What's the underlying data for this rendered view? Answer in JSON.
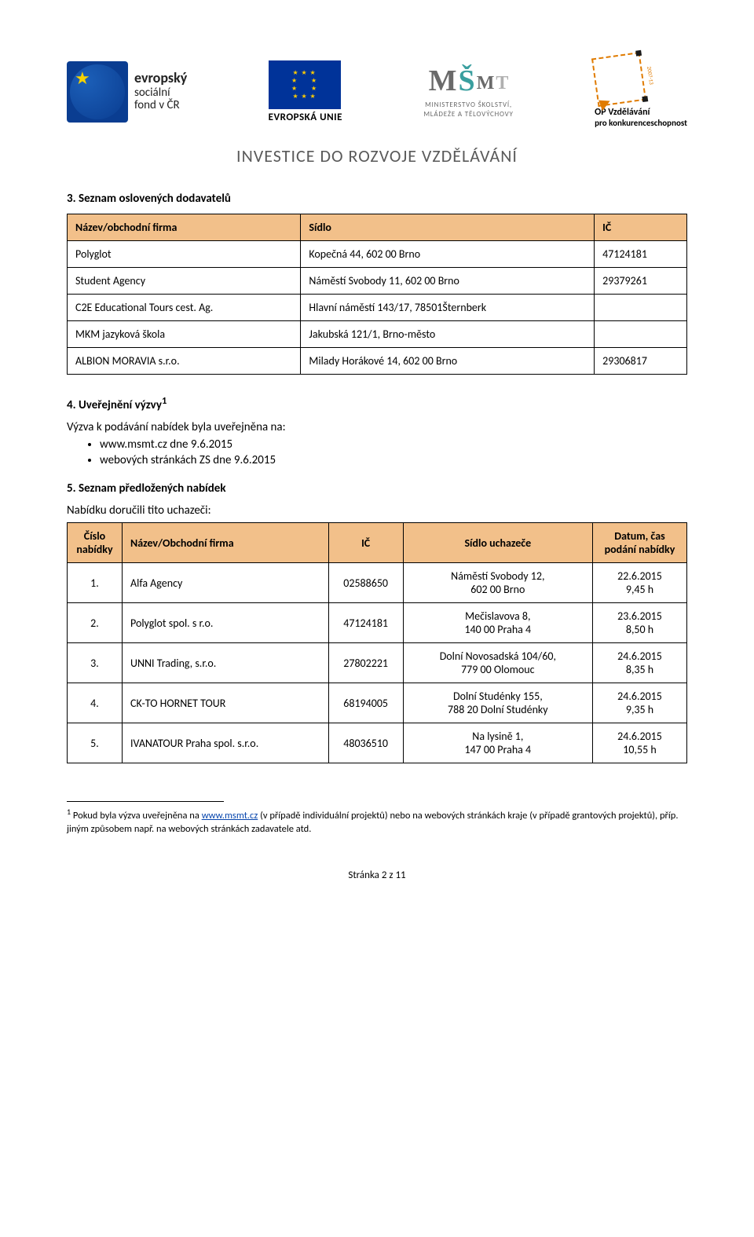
{
  "header": {
    "esf_l1": "evropský",
    "esf_l2": "sociální",
    "esf_l3": "fond v ČR",
    "eu_label": "EVROPSKÁ UNIE",
    "msmt_l1": "MINISTERSTVO ŠKOLSTVÍ,",
    "msmt_l2": "MLÁDEŽE A TĚLOVÝCHOVY",
    "opvk_l1": "OP Vzdělávání",
    "opvk_l2": "pro konkurenceschopnost",
    "opvk_year": "2007-13",
    "tagline": "INVESTICE DO ROZVOJE VZDĚLÁVÁNÍ"
  },
  "section3": {
    "heading": "3.      Seznam oslovených dodavatelů",
    "columns": [
      "Název/obchodní firma",
      "Sídlo",
      "IČ"
    ],
    "rows": [
      [
        "Polyglot",
        "Kopečná 44, 602 00 Brno",
        "47124181"
      ],
      [
        "Student Agency",
        "Náměstí Svobody 11, 602 00 Brno",
        "29379261"
      ],
      [
        "C2E Educational Tours cest. Ag.",
        "Hlavní náměstí 143/17, 78501Šternberk",
        ""
      ],
      [
        "MKM jazyková škola",
        "Jakubská 121/1, Brno-město",
        ""
      ],
      [
        "ALBION MORAVIA s.r.o.",
        "Milady Horákové 14, 602 00 Brno",
        "29306817"
      ]
    ]
  },
  "section4": {
    "heading": "4.      Uveřejnění výzvy",
    "super": "1",
    "line1": "Výzva k podávání nabídek byla uveřejněna na:",
    "bullets": [
      "www.msmt.cz dne 9.6.2015",
      "webových stránkách ZS dne 9.6.2015"
    ]
  },
  "section5": {
    "heading": "5.      Seznam předložených nabídek",
    "line1": "Nabídku doručili tito uchazeči:",
    "columns": [
      "Číslo nabídky",
      "Název/Obchodní firma",
      "IČ",
      "Sídlo uchazeče",
      "Datum, čas podání nabídky"
    ],
    "rows": [
      {
        "n": "1.",
        "name": "Alfa Agency",
        "ic": "02588650",
        "addr": "Náměstí Svobody 12,\n602 00 Brno",
        "dt": "22.6.2015\n9,45 h"
      },
      {
        "n": "2.",
        "name": "Polyglot spol. s r.o.",
        "ic": "47124181",
        "addr": "Mečislavova 8,\n140 00 Praha 4",
        "dt": "23.6.2015\n8,50 h"
      },
      {
        "n": "3.",
        "name": "UNNI Trading, s.r.o.",
        "ic": "27802221",
        "addr": "Dolní Novosadská 104/60,\n779 00 Olomouc",
        "dt": "24.6.2015\n8,35 h"
      },
      {
        "n": "4.",
        "name": "CK-TO HORNET TOUR",
        "ic": "68194005",
        "addr": "Dolní Studénky 155,\n788 20 Dolní Studénky",
        "dt": "24.6.2015\n9,35 h"
      },
      {
        "n": "5.",
        "name": "IVANATOUR Praha spol. s.r.o.",
        "ic": "48036510",
        "addr": "Na lysině 1,\n147 00 Praha 4",
        "dt": "24.6.2015\n10,55 h"
      }
    ]
  },
  "footnote": {
    "sup": "1",
    "pre": " Pokud byla výzva uveřejněna na ",
    "link": "www.msmt.cz",
    "post": " (v případě individuální projektů) nebo na webových stránkách kraje (v případě grantových projektů), příp. jiným způsobem např. na webových stránkách zadavatele atd."
  },
  "pagenum": "Stránka 2 z 11",
  "style": {
    "th_bg": "#f2c08a",
    "border_color": "#000000",
    "body_font_size": 15,
    "table_font_size": 14
  }
}
